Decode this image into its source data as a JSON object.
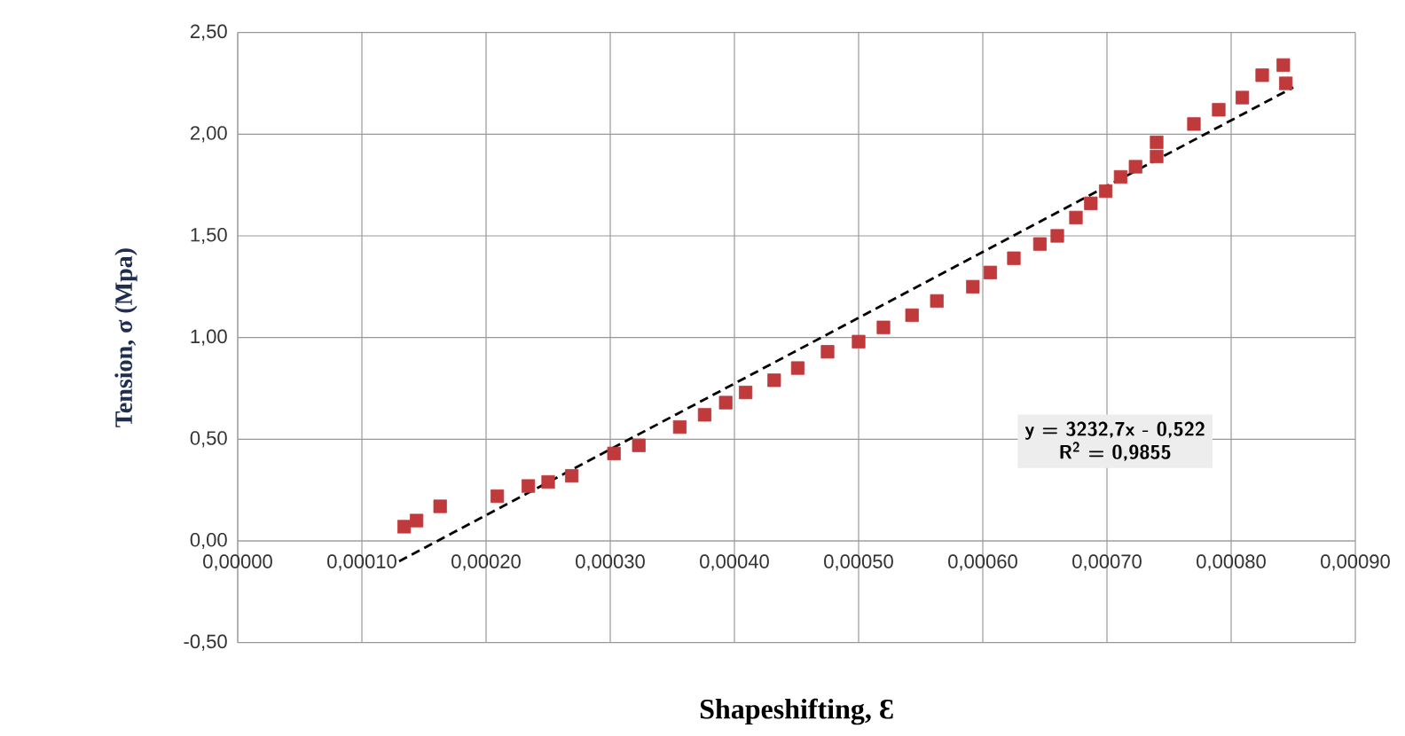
{
  "chart_data": {
    "type": "scatter",
    "xlabel": "Shapeshifting, Ɛ",
    "ylabel": "Tension, σ (Mpa)",
    "annotations": [
      "y = 3232,7x - 0,522",
      "R$^{2}$ = 0,9855"
    ],
    "xlim": [
      0,
      0.0009
    ],
    "ylim": [
      -0.5,
      2.5
    ],
    "xticks": [
      {
        "value": 0,
        "label": "0,00000"
      },
      {
        "value": 0.0001,
        "label": "0,00010"
      },
      {
        "value": 0.0002,
        "label": "0,00020"
      },
      {
        "value": 0.0003,
        "label": "0,00030"
      },
      {
        "value": 0.0004,
        "label": "0,00040"
      },
      {
        "value": 0.0005,
        "label": "0,00050"
      },
      {
        "value": 0.0006,
        "label": "0,00060"
      },
      {
        "value": 0.0007,
        "label": "0,00070"
      },
      {
        "value": 0.0008,
        "label": "0,00080"
      },
      {
        "value": 0.0009,
        "label": "0,00090"
      }
    ],
    "yticks": [
      {
        "value": -0.5,
        "label": "-0,50"
      },
      {
        "value": 0,
        "label": "0,00"
      },
      {
        "value": 0.5,
        "label": "0,50"
      },
      {
        "value": 1,
        "label": "1,00"
      },
      {
        "value": 1.5,
        "label": "1,50"
      },
      {
        "value": 2,
        "label": "2,00"
      },
      {
        "value": 2.5,
        "label": "2,50"
      }
    ],
    "grid": true,
    "series": [
      {
        "type": "scatter",
        "color": "#c0393b",
        "marker": "square",
        "x": [
          0.000134,
          0.000144,
          0.000163,
          0.000209,
          0.000234,
          0.00025,
          0.000269,
          0.000303,
          0.000323,
          0.000356,
          0.000376,
          0.000393,
          0.000409,
          0.000432,
          0.000451,
          0.000475,
          0.0005,
          0.00052,
          0.000543,
          0.000563,
          0.000592,
          0.000606,
          0.000625,
          0.000646,
          0.00066,
          0.000675,
          0.000687,
          0.000699,
          0.000711,
          0.000723,
          0.00074,
          0.00074,
          0.00077,
          0.00079,
          0.000809,
          0.000825,
          0.000842,
          0.000844
        ],
        "values": [
          0.07,
          0.1,
          0.17,
          0.22,
          0.27,
          0.29,
          0.32,
          0.43,
          0.47,
          0.56,
          0.62,
          0.68,
          0.73,
          0.79,
          0.85,
          0.93,
          0.98,
          1.05,
          1.11,
          1.18,
          1.25,
          1.32,
          1.39,
          1.46,
          1.5,
          1.59,
          1.66,
          1.72,
          1.79,
          1.84,
          1.96,
          1.89,
          2.05,
          2.12,
          2.18,
          2.29,
          2.34,
          2.25
        ]
      },
      {
        "type": "line",
        "color": "#000000",
        "marker": "none",
        "line_style": "dashed",
        "x": [
          0.00013,
          0.00085
        ],
        "values": [
          -0.1,
          2.23
        ]
      }
    ]
  }
}
